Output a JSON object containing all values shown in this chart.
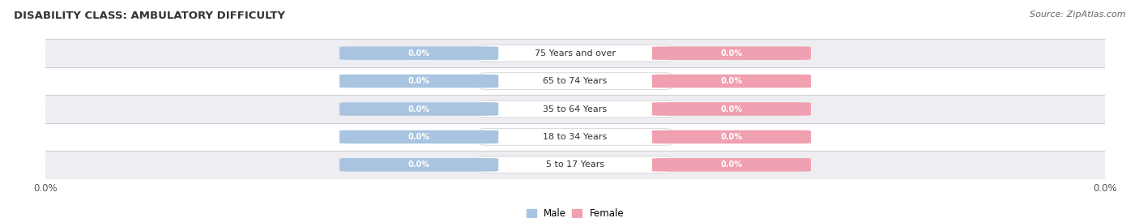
{
  "title": "DISABILITY CLASS: AMBULATORY DIFFICULTY",
  "source": "Source: ZipAtlas.com",
  "categories": [
    "5 to 17 Years",
    "18 to 34 Years",
    "35 to 64 Years",
    "65 to 74 Years",
    "75 Years and over"
  ],
  "male_values": [
    0.0,
    0.0,
    0.0,
    0.0,
    0.0
  ],
  "female_values": [
    0.0,
    0.0,
    0.0,
    0.0,
    0.0
  ],
  "male_color": "#a8c4e0",
  "female_color": "#f0a0b0",
  "label_text_color": "#ffffff",
  "category_text_color": "#333333",
  "title_color": "#333333",
  "bg_color": "#ffffff",
  "row_bg_colors": [
    "#ededf2",
    "#ffffff"
  ],
  "xlim": [
    -1.0,
    1.0
  ],
  "legend_male": "Male",
  "legend_female": "Female",
  "x_left_label": "0.0%",
  "x_right_label": "0.0%"
}
